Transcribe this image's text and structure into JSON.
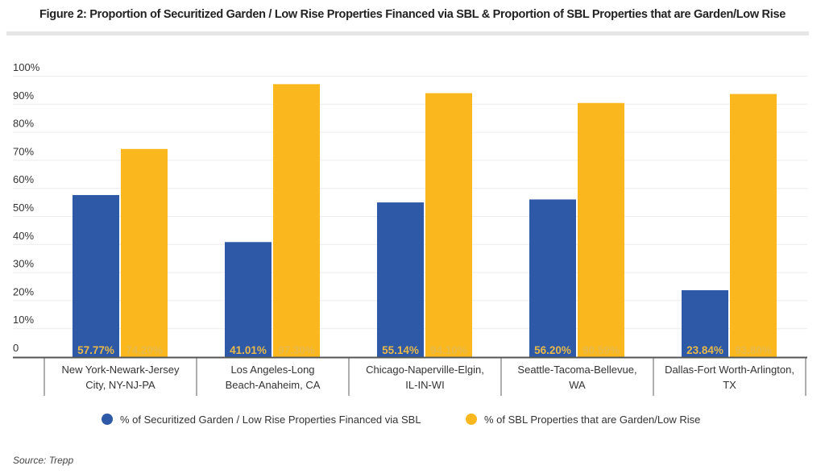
{
  "title": "Figure 2: Proportion of Securitized Garden / Low Rise Properties Financed via SBL & Proportion of SBL Properties that are Garden/Low Rise",
  "source": "Source: Trepp",
  "chart_data": {
    "type": "bar",
    "title": "Figure 2: Proportion of Securitized Garden / Low Rise Properties Financed via SBL & Proportion of SBL Properties that are Garden/Low Rise",
    "categories": [
      [
        "New York-Newark-Jersey",
        "City, NY-NJ-PA"
      ],
      [
        "Los Angeles-Long",
        "Beach-Anaheim, CA"
      ],
      [
        "Chicago-Naperville-Elgin,",
        "IL-IN-WI"
      ],
      [
        "Seattle-Tacoma-Bellevue,",
        "WA"
      ],
      [
        "Dallas-Fort Worth-Arlington,",
        "TX"
      ]
    ],
    "series": [
      {
        "name": "% of Securitized Garden / Low Rise Properties Financed via SBL",
        "color": "#2e59a7",
        "values": [
          57.77,
          41.01,
          55.14,
          56.2,
          23.84
        ],
        "labels": [
          "57.77%",
          "41.01%",
          "55.14%",
          "56.20%",
          "23.84%"
        ]
      },
      {
        "name": "% of SBL Properties that are Garden/Low Rise",
        "color": "#fbb81e",
        "values": [
          74.2,
          97.3,
          94.1,
          90.59,
          93.8
        ],
        "labels": [
          "74.20%",
          "97.30%",
          "94.10%",
          "90.59%",
          "93.80%"
        ]
      }
    ],
    "ylim": [
      0,
      100
    ],
    "yticks": [
      "0",
      "10%",
      "20%",
      "30%",
      "40%",
      "50%",
      "60%",
      "70%",
      "80%",
      "90%",
      "100%"
    ],
    "data_label_color": "#e8b94a",
    "grid": true,
    "legend": "bottom",
    "xlabel": "",
    "ylabel": ""
  }
}
